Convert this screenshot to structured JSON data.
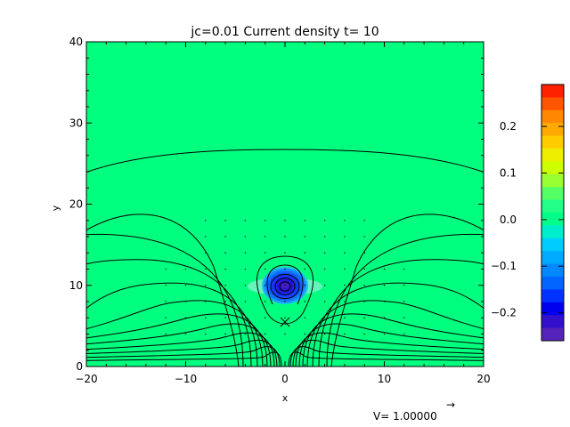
{
  "chart_data": {
    "type": "heatmap",
    "title": "jc=0.01 Current density t= 10",
    "xlabel": "x",
    "ylabel": "y",
    "xlim": [
      -20,
      20
    ],
    "ylim": [
      0,
      40
    ],
    "x_ticks": [
      -20,
      -10,
      0,
      10,
      20
    ],
    "x_tick_labels": [
      "−20",
      "−10",
      "0",
      "10",
      "20"
    ],
    "y_ticks": [
      0,
      10,
      20,
      30,
      40
    ],
    "y_tick_labels": [
      "0",
      "10",
      "20",
      "30",
      "40"
    ],
    "background_value": 0.0,
    "current_blob": {
      "x": 0,
      "y": 10,
      "min_value": -0.25
    },
    "x_point": {
      "x": 0,
      "y": 6
    },
    "colorbar": {
      "range": [
        -0.26,
        0.29
      ],
      "ticks": [
        0.2,
        0.1,
        0.0,
        -0.1,
        -0.2
      ],
      "tick_labels": [
        "0.2",
        "0.1",
        "0.0",
        "−0.1",
        "−0.2"
      ],
      "colors": [
        "#ff2200",
        "#ff5500",
        "#ff8800",
        "#ffaa00",
        "#ffcc00",
        "#eeee00",
        "#ccff00",
        "#99ff33",
        "#55ff66",
        "#22ff88",
        "#00ff88",
        "#00eecc",
        "#00ccff",
        "#00aaff",
        "#0088ff",
        "#0066ff",
        "#0033ff",
        "#0000ee",
        "#3311cc",
        "#5522bb"
      ]
    },
    "vector_legend": {
      "label": "V= 1.00000",
      "arrow": "→"
    }
  }
}
